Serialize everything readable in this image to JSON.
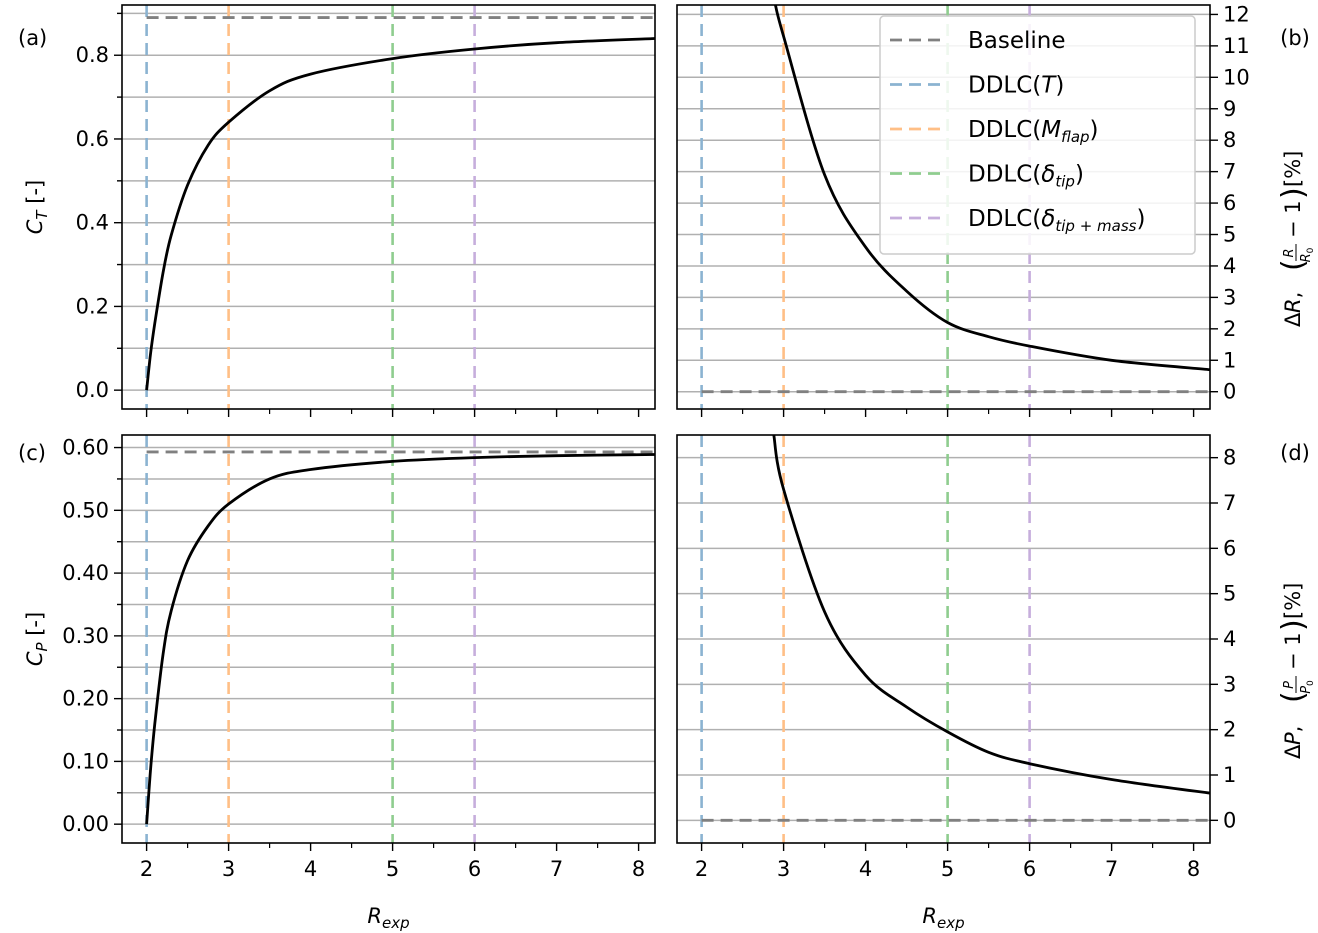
{
  "chart_data": [
    {
      "type": "line",
      "panel_label": "(a)",
      "ylabel_main": "C",
      "ylabel_sub": "T",
      "ylabel_unit": " [-]",
      "xlim": [
        1.7,
        8.2
      ],
      "ylim": [
        -0.045,
        0.92
      ],
      "yticks": [
        0.0,
        0.2,
        0.4,
        0.6,
        0.8
      ],
      "ytick_labels": [
        "0.0",
        "0.2",
        "0.4",
        "0.6",
        "0.8"
      ],
      "grid_y": [
        0.0,
        0.1,
        0.2,
        0.3,
        0.4,
        0.5,
        0.6,
        0.7,
        0.8,
        0.9
      ],
      "baseline": 0.89,
      "series": [
        {
          "x": [
            2.0,
            2.05,
            2.1,
            2.2,
            2.3,
            2.5,
            2.75,
            3.0,
            3.5,
            4.0,
            5.0,
            6.0,
            7.0,
            8.2
          ],
          "values": [
            0.0,
            0.09,
            0.16,
            0.28,
            0.37,
            0.49,
            0.585,
            0.64,
            0.715,
            0.755,
            0.792,
            0.815,
            0.83,
            0.84
          ]
        }
      ]
    },
    {
      "type": "line",
      "panel_label": "(b)",
      "ylabel_main": "ΔR, ",
      "ylabel_frac_num": "R",
      "ylabel_frac_den": "R",
      "ylabel_frac_den_sub": "0",
      "ylabel_unit": " [%]",
      "xlim": [
        1.7,
        8.2
      ],
      "ylim": [
        -0.55,
        12.3
      ],
      "yticks": [
        0,
        1,
        2,
        3,
        4,
        5,
        6,
        7,
        8,
        9,
        10,
        11,
        12
      ],
      "ytick_labels": [
        "0",
        "1",
        "2",
        "3",
        "4",
        "5",
        "6",
        "7",
        "8",
        "9",
        "10",
        "11",
        "12"
      ],
      "grid_y": [
        0,
        1,
        2,
        3,
        4,
        5,
        6,
        7,
        8,
        9,
        10,
        11,
        12
      ],
      "baseline": 0,
      "series": [
        {
          "x": [
            2.9,
            3.0,
            3.5,
            4.0,
            4.5,
            5.0,
            5.5,
            6.0,
            7.0,
            8.2
          ],
          "values": [
            12.3,
            11.3,
            6.9,
            4.6,
            3.2,
            2.2,
            1.75,
            1.45,
            1.0,
            0.7
          ]
        }
      ]
    },
    {
      "type": "line",
      "panel_label": "(c)",
      "ylabel_main": "C",
      "ylabel_sub": "P",
      "ylabel_unit": " [-]",
      "xlim": [
        1.7,
        8.2
      ],
      "ylim": [
        -0.03,
        0.62
      ],
      "yticks": [
        0.0,
        0.1,
        0.2,
        0.3,
        0.4,
        0.5,
        0.6
      ],
      "ytick_labels": [
        "0.00",
        "0.10",
        "0.20",
        "0.30",
        "0.40",
        "0.50",
        "0.60"
      ],
      "grid_y": [
        0.0,
        0.05,
        0.1,
        0.15,
        0.2,
        0.25,
        0.3,
        0.35,
        0.4,
        0.45,
        0.5,
        0.55,
        0.6
      ],
      "baseline": 0.593,
      "series": [
        {
          "x": [
            2.0,
            2.05,
            2.1,
            2.2,
            2.3,
            2.5,
            2.75,
            3.0,
            3.5,
            4.0,
            5.0,
            6.0,
            7.0,
            8.2
          ],
          "values": [
            0.0,
            0.09,
            0.16,
            0.27,
            0.34,
            0.42,
            0.475,
            0.51,
            0.55,
            0.565,
            0.578,
            0.584,
            0.587,
            0.589
          ]
        }
      ]
    },
    {
      "type": "line",
      "panel_label": "(d)",
      "ylabel_main": "ΔP, ",
      "ylabel_frac_num": "P",
      "ylabel_frac_den": "P",
      "ylabel_frac_den_sub": "0",
      "ylabel_unit": " [%]",
      "xlim": [
        1.7,
        8.2
      ],
      "ylim": [
        -0.5,
        8.5
      ],
      "yticks": [
        0,
        1,
        2,
        3,
        4,
        5,
        6,
        7,
        8
      ],
      "ytick_labels": [
        "0",
        "1",
        "2",
        "3",
        "4",
        "5",
        "6",
        "7",
        "8"
      ],
      "grid_y": [
        0,
        1,
        2,
        3,
        4,
        5,
        6,
        7,
        8
      ],
      "baseline": 0,
      "series": [
        {
          "x": [
            2.88,
            3.0,
            3.5,
            4.0,
            4.5,
            5.0,
            5.5,
            6.0,
            7.0,
            8.2
          ],
          "values": [
            8.5,
            7.3,
            4.6,
            3.2,
            2.5,
            1.95,
            1.5,
            1.25,
            0.9,
            0.6
          ]
        }
      ]
    }
  ],
  "xticks": [
    2,
    3,
    4,
    5,
    6,
    7,
    8
  ],
  "xtick_labels": [
    "2",
    "3",
    "4",
    "5",
    "6",
    "7",
    "8"
  ],
  "xlabel_main": "R",
  "xlabel_sub": "exp",
  "vlines": [
    {
      "x": 2,
      "color": "#8bb3d1"
    },
    {
      "x": 3,
      "color": "#ffbf86"
    },
    {
      "x": 5,
      "color": "#8fcd8f"
    },
    {
      "x": 6,
      "color": "#c6aedc"
    }
  ],
  "colors": {
    "curve": "#000000",
    "baseline": "#808080",
    "grid": "#b0b0b0"
  },
  "legend": {
    "position": "upper-right of panel (b)",
    "entries": [
      {
        "label": "Baseline",
        "color": "#808080"
      },
      {
        "label": "DDLC(",
        "italic": "T",
        "sub": "",
        "close": ")",
        "color": "#8bb3d1"
      },
      {
        "label": "DDLC(",
        "italic": "M",
        "sub": "flap",
        "close": ")",
        "color": "#ffbf86"
      },
      {
        "label": "DDLC(",
        "italic": "δ",
        "sub": "tip",
        "close": ")",
        "color": "#8fcd8f"
      },
      {
        "label": "DDLC(",
        "italic": "δ",
        "sub": "tip + mass",
        "close": ")",
        "color": "#c6aedc"
      }
    ]
  }
}
